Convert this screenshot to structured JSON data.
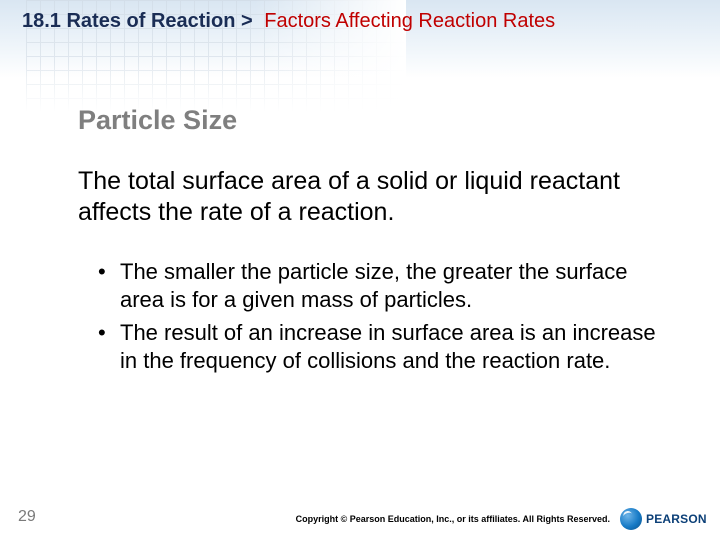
{
  "colors": {
    "breadcrumb_text": "#1a2d55",
    "topic_text": "#c00000",
    "subheading_text": "#7f7f7f",
    "body_text": "#000000",
    "pagenum_text": "#7a7a7a",
    "header_gradient_top": "#d9e6f2",
    "header_gradient_bottom": "#ffffff",
    "grid_line": "#cfd9e3",
    "logo_text": "#0b3f77"
  },
  "fonts": {
    "breadcrumb_size_pt": 15,
    "topic_size_pt": 15,
    "subheading_size_pt": 20,
    "lead_size_pt": 19,
    "bullet_size_pt": 17,
    "pagenum_size_pt": 12,
    "copyright_size_pt": 7
  },
  "breadcrumb": {
    "section": "18.1 Rates of Reaction",
    "chevron": ">",
    "topic": "Factors Affecting Reaction Rates"
  },
  "subheading": "Particle Size",
  "lead": "The total surface area of a solid or liquid reactant affects the rate of a reaction.",
  "bullets": [
    "The smaller the particle size, the greater the surface area is for a given mass of particles.",
    "The result of an increase in surface area is an increase in the frequency of collisions and the reaction rate."
  ],
  "page_number": "29",
  "copyright": "Copyright © Pearson Education, Inc., or its affiliates. All Rights Reserved.",
  "logo": {
    "text": "PEARSON"
  }
}
